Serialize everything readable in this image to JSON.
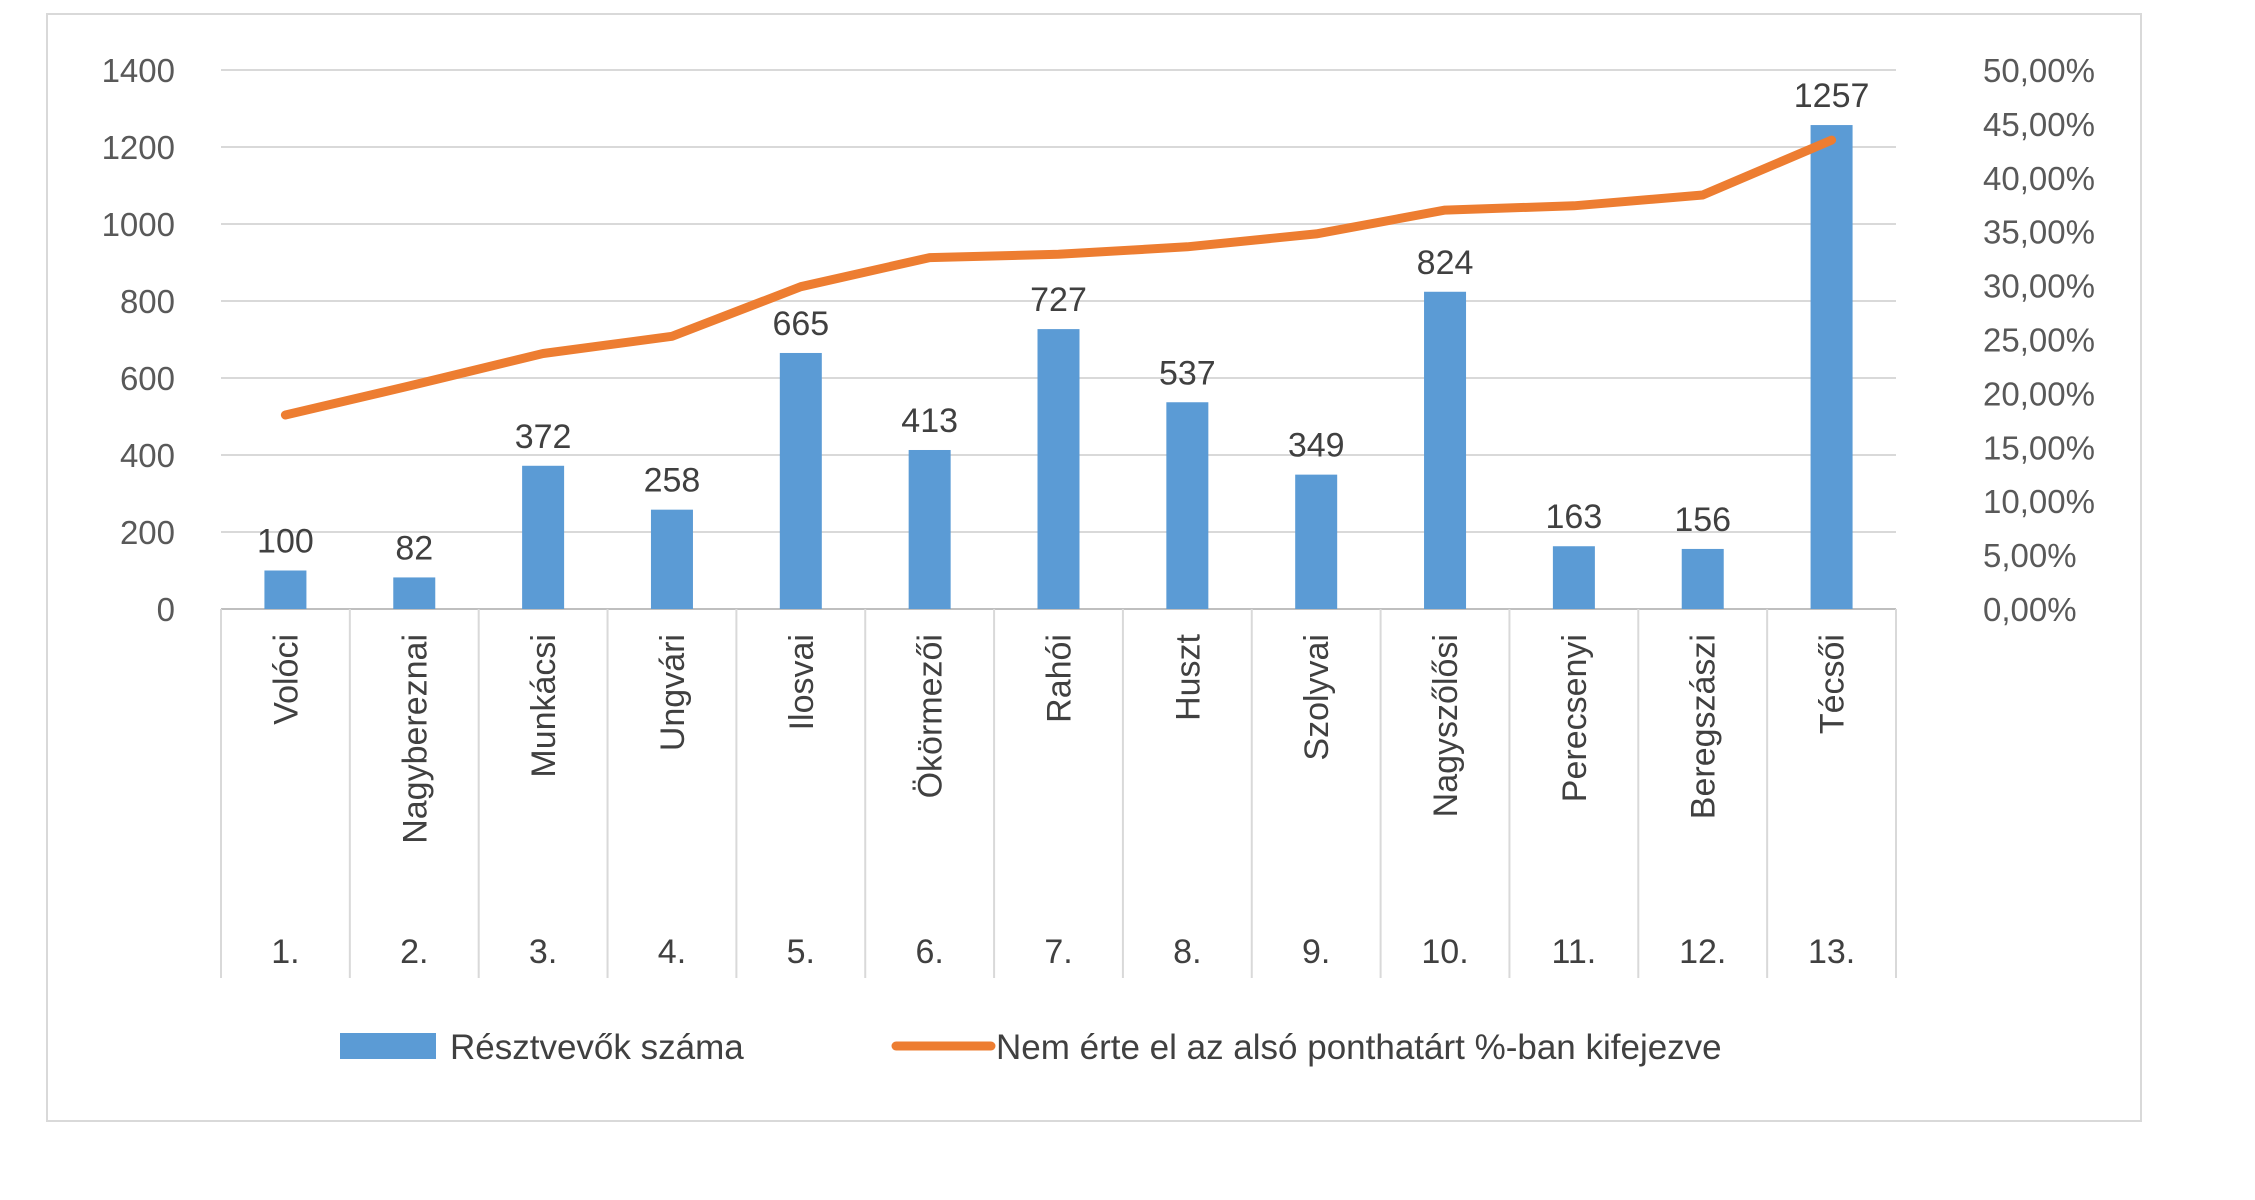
{
  "chart_data": {
    "type": "bar",
    "categories": [
      "Volóci",
      "Nagybereznai",
      "Munkácsi",
      "Ungvári",
      "Ilosvai",
      "Ökörmezői",
      "Rahói",
      "Huszt",
      "Szolyvai",
      "Nagyszőlősi",
      "Perecsenyi",
      "Beregszászi",
      "Técsői"
    ],
    "rank_labels": [
      "1.",
      "2.",
      "3.",
      "4.",
      "5.",
      "6.",
      "7.",
      "8.",
      "9.",
      "10.",
      "11.",
      "12.",
      "13."
    ],
    "series": [
      {
        "name": "Résztvevők száma",
        "type": "bar",
        "axis": "left",
        "color": "#5b9bd5",
        "values": [
          100,
          82,
          372,
          258,
          665,
          413,
          727,
          537,
          349,
          824,
          163,
          156,
          1257
        ],
        "data_labels": [
          "100",
          "82",
          "372",
          "258",
          "665",
          "413",
          "727",
          "537",
          "349",
          "824",
          "163",
          "156",
          "1257"
        ]
      },
      {
        "name": "Nem érte el az alsó ponthatárt %-ban kifejezve",
        "type": "line",
        "axis": "right",
        "color": "#ed7d31",
        "values": [
          18.0,
          20.8,
          23.7,
          25.3,
          29.9,
          32.6,
          32.9,
          33.6,
          34.8,
          37.0,
          37.4,
          38.4,
          43.5
        ]
      }
    ],
    "y_left": {
      "min": 0,
      "max": 1400,
      "ticks": [
        "0",
        "200",
        "400",
        "600",
        "800",
        "1000",
        "1200",
        "1400"
      ]
    },
    "y_right": {
      "min": 0,
      "max": 50,
      "ticks": [
        "0,00%",
        "5,00%",
        "10,00%",
        "15,00%",
        "20,00%",
        "25,00%",
        "30,00%",
        "35,00%",
        "40,00%",
        "45,00%",
        "50,00%"
      ]
    },
    "grid": true,
    "legend_position": "bottom"
  }
}
